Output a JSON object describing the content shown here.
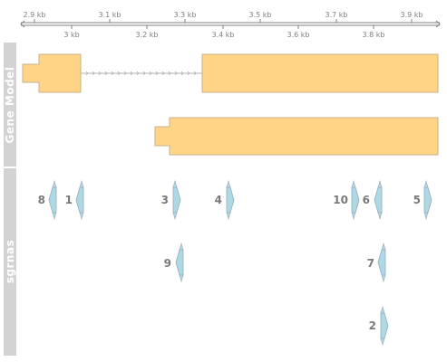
{
  "axis": {
    "top_ticks": [
      "2.9 kb",
      "3.1 kb",
      "3.3 kb",
      "3.5 kb",
      "3.7 kb",
      "3.9 kb"
    ],
    "bottom_ticks": [
      "3 kb",
      "3.2 kb",
      "3.4 kb",
      "3.6 kb",
      "3.8 kb"
    ]
  },
  "tracks": {
    "gene_model": {
      "label": "Gene Model"
    },
    "sgrnas": {
      "label": "sgrnas"
    }
  },
  "colors": {
    "exon_fill": "#ffd486",
    "exon_stroke": "#c8b28a",
    "sgrna_fill": "#add8e6",
    "sgrna_stroke": "#9aaab5",
    "track_label_bg": "#d3d3d3",
    "axis": "#808080"
  },
  "sgrnas": [
    {
      "label": "8",
      "strand": "-",
      "row": 1
    },
    {
      "label": "1",
      "strand": "-",
      "row": 1
    },
    {
      "label": "3",
      "strand": "+",
      "row": 1
    },
    {
      "label": "4",
      "strand": "+",
      "row": 1
    },
    {
      "label": "10",
      "strand": "+",
      "row": 1
    },
    {
      "label": "6",
      "strand": "-",
      "row": 1
    },
    {
      "label": "5",
      "strand": "+",
      "row": 1
    },
    {
      "label": "9",
      "strand": "-",
      "row": 2
    },
    {
      "label": "7",
      "strand": "-",
      "row": 2
    },
    {
      "label": "2",
      "strand": "+",
      "row": 3
    }
  ]
}
